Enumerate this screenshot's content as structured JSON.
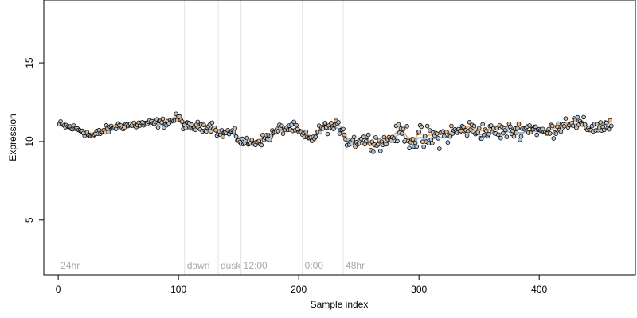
{
  "chart_data": {
    "type": "scatter",
    "title": "",
    "xlabel": "Sample index",
    "ylabel": "Expression",
    "xlim": [
      -12,
      480
    ],
    "ylim": [
      1.5,
      19
    ],
    "x_ticks": [
      0,
      100,
      200,
      300,
      400
    ],
    "y_ticks": [
      5,
      10,
      15
    ],
    "grid": false,
    "legend": "none",
    "phase_markers": [
      {
        "label": "24hr",
        "x": 0,
        "line": false
      },
      {
        "label": "dawn",
        "x": 105,
        "line": true
      },
      {
        "label": "dusk",
        "x": 133,
        "line": true
      },
      {
        "label": "12:00",
        "x": 152,
        "line": true
      },
      {
        "label": "0:00",
        "x": 203,
        "line": true
      },
      {
        "label": "48hr",
        "x": 237,
        "line": true
      }
    ],
    "colors": {
      "marker_fill_light": "#bdbdbd",
      "marker_fill_tan": "#e8b98a",
      "marker_fill_blue": "#a9c7e6",
      "marker_edge": "#000000",
      "smooth_blue": "#6ca0dc",
      "smooth_orange": "#f0a050",
      "phase_line": "#e2e2e2",
      "phase_label": "#a8a8a8"
    },
    "profile_knots": [
      [
        0,
        11.1
      ],
      [
        20,
        10.7
      ],
      [
        28,
        10.3
      ],
      [
        35,
        10.6
      ],
      [
        50,
        11.0
      ],
      [
        70,
        11.1
      ],
      [
        90,
        11.2
      ],
      [
        100,
        11.5
      ],
      [
        105,
        11.0
      ],
      [
        110,
        10.9
      ],
      [
        130,
        11.0
      ],
      [
        133,
        10.5
      ],
      [
        145,
        10.6
      ],
      [
        152,
        10.0
      ],
      [
        160,
        9.9
      ],
      [
        170,
        10.1
      ],
      [
        185,
        10.8
      ],
      [
        195,
        10.9
      ],
      [
        203,
        10.4
      ],
      [
        210,
        10.1
      ],
      [
        220,
        10.9
      ],
      [
        237,
        10.9
      ],
      [
        240,
        10.0
      ],
      [
        255,
        10.1
      ],
      [
        270,
        9.9
      ],
      [
        285,
        10.6
      ],
      [
        295,
        10.2
      ],
      [
        305,
        10.1
      ],
      [
        320,
        10.4
      ],
      [
        340,
        10.8
      ],
      [
        360,
        10.6
      ],
      [
        380,
        10.7
      ],
      [
        395,
        10.9
      ],
      [
        405,
        10.5
      ],
      [
        415,
        10.9
      ],
      [
        425,
        11.3
      ],
      [
        440,
        10.9
      ],
      [
        460,
        11.0
      ]
    ],
    "n_points": 460,
    "amplitude_knots": [
      [
        0,
        0.15
      ],
      [
        230,
        0.22
      ],
      [
        240,
        0.28
      ],
      [
        280,
        0.3
      ],
      [
        300,
        0.55
      ],
      [
        330,
        0.35
      ],
      [
        400,
        0.3
      ],
      [
        460,
        0.3
      ]
    ]
  }
}
